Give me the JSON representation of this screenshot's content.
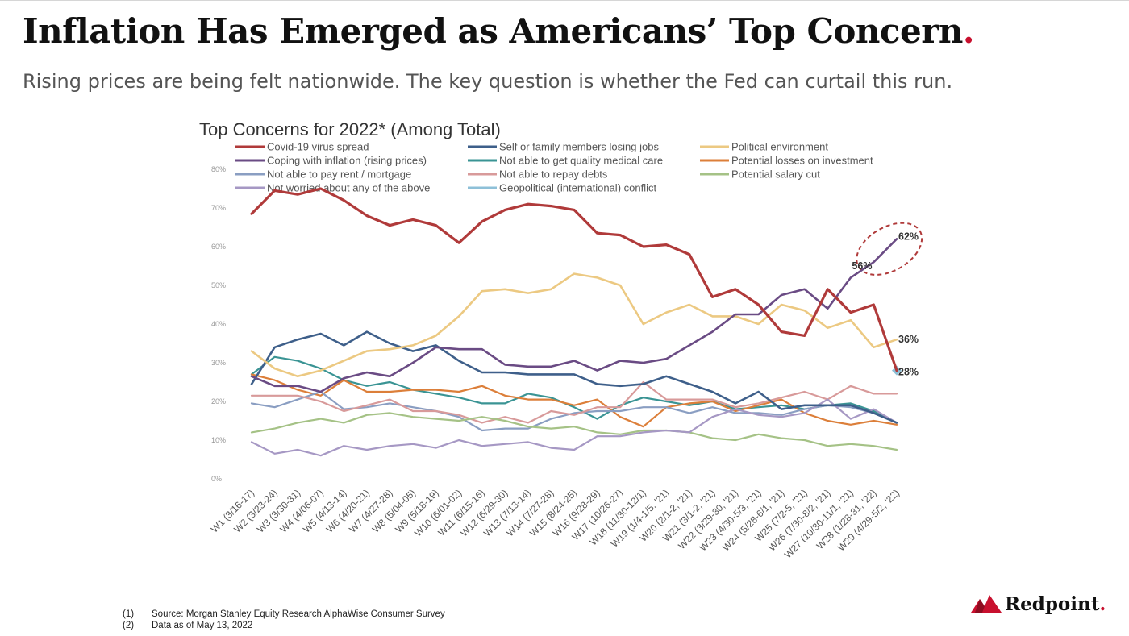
{
  "page": {
    "title": "Inflation Has Emerged as Americans’ Top Concern",
    "title_dot": ".",
    "subtitle": "Rising prices are being felt nationwide. The key question is whether the Fed can curtail this run.",
    "footnotes": [
      {
        "num": "(1)",
        "text": "Source: Morgan Stanley Equity Research AlphaWise Consumer Survey"
      },
      {
        "num": "(2)",
        "text": "Data as of May 13, 2022"
      }
    ],
    "brand": {
      "name": "Redpoint",
      "dot": ".",
      "accent": "#c8102e"
    }
  },
  "chart_data": {
    "type": "line",
    "title": "Top Concerns for 2022* (Among Total)",
    "ylim": [
      0,
      80
    ],
    "yticks": [
      "0%",
      "10%",
      "20%",
      "30%",
      "40%",
      "50%",
      "60%",
      "70%",
      "80%"
    ],
    "grid": false,
    "legend_position": "top",
    "categories": [
      "W1 (3/16-17)",
      "W2 (3/23-24)",
      "W3 (3/30-31)",
      "W4 (4/06-07)",
      "W5 (4/13-14)",
      "W6 (4/20-21)",
      "W7 (4/27-28)",
      "W8 (5/04-05)",
      "W9 (5/18-19)",
      "W10 (6/01-02)",
      "W11 (6/15-16)",
      "W12 (6/29-30)",
      "W13 (7/13-14)",
      "W14 (7/27-28)",
      "W15 (8/24-25)",
      "W16 (9/28-29)",
      "W17 (10/26-27)",
      "W18 (11/30-12/1)",
      "W19 (1/4-1/5, '21)",
      "W20 (2/1-2, '21)",
      "W21 (3/1-2, '21)",
      "W22 (3/29-30, '21)",
      "W23 (4/30-5/3, '21)",
      "W24 (5/28-6/1, '21)",
      "W25 (7/2-5, '21)",
      "W26 (7/30-8/2, '21)",
      "W27 (10/30-11/1, '21)",
      "W28 (1/28-31, '22)",
      "W29 (4/29-5/2, '22)"
    ],
    "series": [
      {
        "name": "Covid-19 virus spread",
        "color": "#b03a3a",
        "width": 3.2,
        "values": [
          68.5,
          74.5,
          73.5,
          75,
          72,
          68,
          65.5,
          67,
          65.5,
          61,
          66.5,
          69.5,
          71,
          70.5,
          69.5,
          63.5,
          63,
          60,
          60.5,
          58,
          47,
          49,
          45,
          38,
          37,
          49,
          43,
          45,
          28
        ]
      },
      {
        "name": "Self or family members losing jobs",
        "color": "#3e5f8a",
        "width": 2.6,
        "values": [
          24.5,
          34,
          36,
          37.5,
          34.5,
          38,
          35,
          33,
          34.5,
          30.5,
          27.5,
          27.5,
          27,
          27,
          27,
          24.5,
          24,
          24.5,
          26.5,
          24.5,
          22.5,
          19.5,
          22.5,
          18,
          19,
          19,
          19,
          17,
          14.5
        ]
      },
      {
        "name": "Political environment",
        "color": "#ecc982",
        "width": 2.6,
        "values": [
          33,
          28.5,
          26.5,
          28,
          30.5,
          33,
          33.5,
          34.5,
          37,
          42,
          48.5,
          49,
          48,
          49,
          53,
          52,
          50,
          40,
          43,
          45,
          42,
          42,
          40,
          45,
          43.5,
          39,
          41,
          34,
          36
        ]
      },
      {
        "name": "Coping with inflation (rising prices)",
        "color": "#6a4b84",
        "width": 2.6,
        "values": [
          26.5,
          24,
          24,
          22.5,
          26,
          27.5,
          26.5,
          30,
          34,
          33.5,
          33.5,
          29.5,
          29,
          29,
          30.5,
          28,
          30.5,
          30,
          31,
          34.5,
          38,
          42.5,
          42.5,
          47.5,
          49,
          44,
          52,
          56,
          62
        ]
      },
      {
        "name": "Not able to get quality medical care",
        "color": "#3a9494",
        "width": 2.2,
        "values": [
          27,
          31.5,
          30.5,
          28.5,
          25.5,
          24,
          25,
          23,
          22,
          21,
          19.5,
          19.5,
          22,
          21,
          18.5,
          15.5,
          19,
          21,
          20,
          19,
          20,
          18,
          18.5,
          19,
          18,
          19,
          19.5,
          17.5,
          14.5
        ]
      },
      {
        "name": "Potential losses on investment",
        "color": "#dc7f3a",
        "width": 2.2,
        "values": [
          27,
          25.5,
          23,
          21.5,
          25.5,
          22.5,
          22.5,
          23,
          23,
          22.5,
          24,
          21.5,
          20.5,
          20.5,
          19,
          20.5,
          16,
          13.5,
          18.5,
          19.5,
          20,
          17.5,
          19,
          20.5,
          17,
          15,
          14,
          15,
          14
        ]
      },
      {
        "name": "Not able to pay rent / mortgage",
        "color": "#8a9ec2",
        "width": 2.2,
        "values": [
          19.5,
          18.5,
          20.5,
          22.5,
          18,
          18.5,
          19.5,
          18.5,
          17.5,
          16,
          12.5,
          13,
          13,
          15.5,
          17,
          17.5,
          17.5,
          18.5,
          18.5,
          17,
          18.5,
          17,
          17,
          16.5,
          18,
          19,
          18.5,
          17,
          14.5
        ]
      },
      {
        "name": "Not able to repay debts",
        "color": "#d89a9a",
        "width": 2.2,
        "values": [
          21.5,
          21.5,
          21.5,
          20,
          17.5,
          19,
          20.5,
          17.5,
          17.5,
          16.5,
          14.5,
          16,
          14.5,
          17.5,
          16.5,
          18.5,
          18.5,
          25,
          20.5,
          20.5,
          20.5,
          18.5,
          19.5,
          21,
          22.5,
          20.5,
          24,
          22,
          22
        ]
      },
      {
        "name": "Potential salary cut",
        "color": "#a5c286",
        "width": 2.2,
        "values": [
          12,
          13,
          14.5,
          15.5,
          14.5,
          16.5,
          17,
          16,
          15.5,
          15,
          16,
          15,
          13.5,
          13,
          13.5,
          12,
          11.5,
          12.5,
          12.5,
          12,
          10.5,
          10,
          11.5,
          10.5,
          10,
          8.5,
          9,
          8.5,
          7.5
        ]
      },
      {
        "name": "Not worried about any of the above",
        "color": "#a698c4",
        "width": 2.2,
        "values": [
          9.5,
          6.5,
          7.5,
          6,
          8.5,
          7.5,
          8.5,
          9,
          8,
          10,
          8.5,
          9,
          9.5,
          8,
          7.5,
          11,
          11,
          12,
          12.5,
          12,
          16,
          18,
          16.5,
          16,
          17,
          20.5,
          15.5,
          18,
          14.5
        ]
      },
      {
        "name": "Geopolitical (international) conflict",
        "color": "#8ec0d8",
        "width": 2.2,
        "values": [
          null,
          null,
          null,
          null,
          null,
          null,
          null,
          null,
          null,
          null,
          null,
          null,
          null,
          null,
          null,
          null,
          null,
          null,
          null,
          null,
          null,
          null,
          null,
          null,
          null,
          null,
          null,
          null,
          28
        ]
      }
    ],
    "annotations": [
      {
        "text": "62%",
        "series": "Coping with inflation (rising prices)",
        "index": 28
      },
      {
        "text": "56%",
        "series": "Coping with inflation (rising prices)",
        "index": 27
      },
      {
        "text": "36%",
        "series": "Political environment",
        "index": 28
      },
      {
        "text": "28%",
        "series": "Covid-19 virus spread",
        "index": 28
      }
    ],
    "highlight": {
      "type": "dashed-ellipse",
      "indices": [
        27,
        28
      ],
      "series": "Coping with inflation (rising prices)",
      "color": "#b03a3a"
    }
  }
}
